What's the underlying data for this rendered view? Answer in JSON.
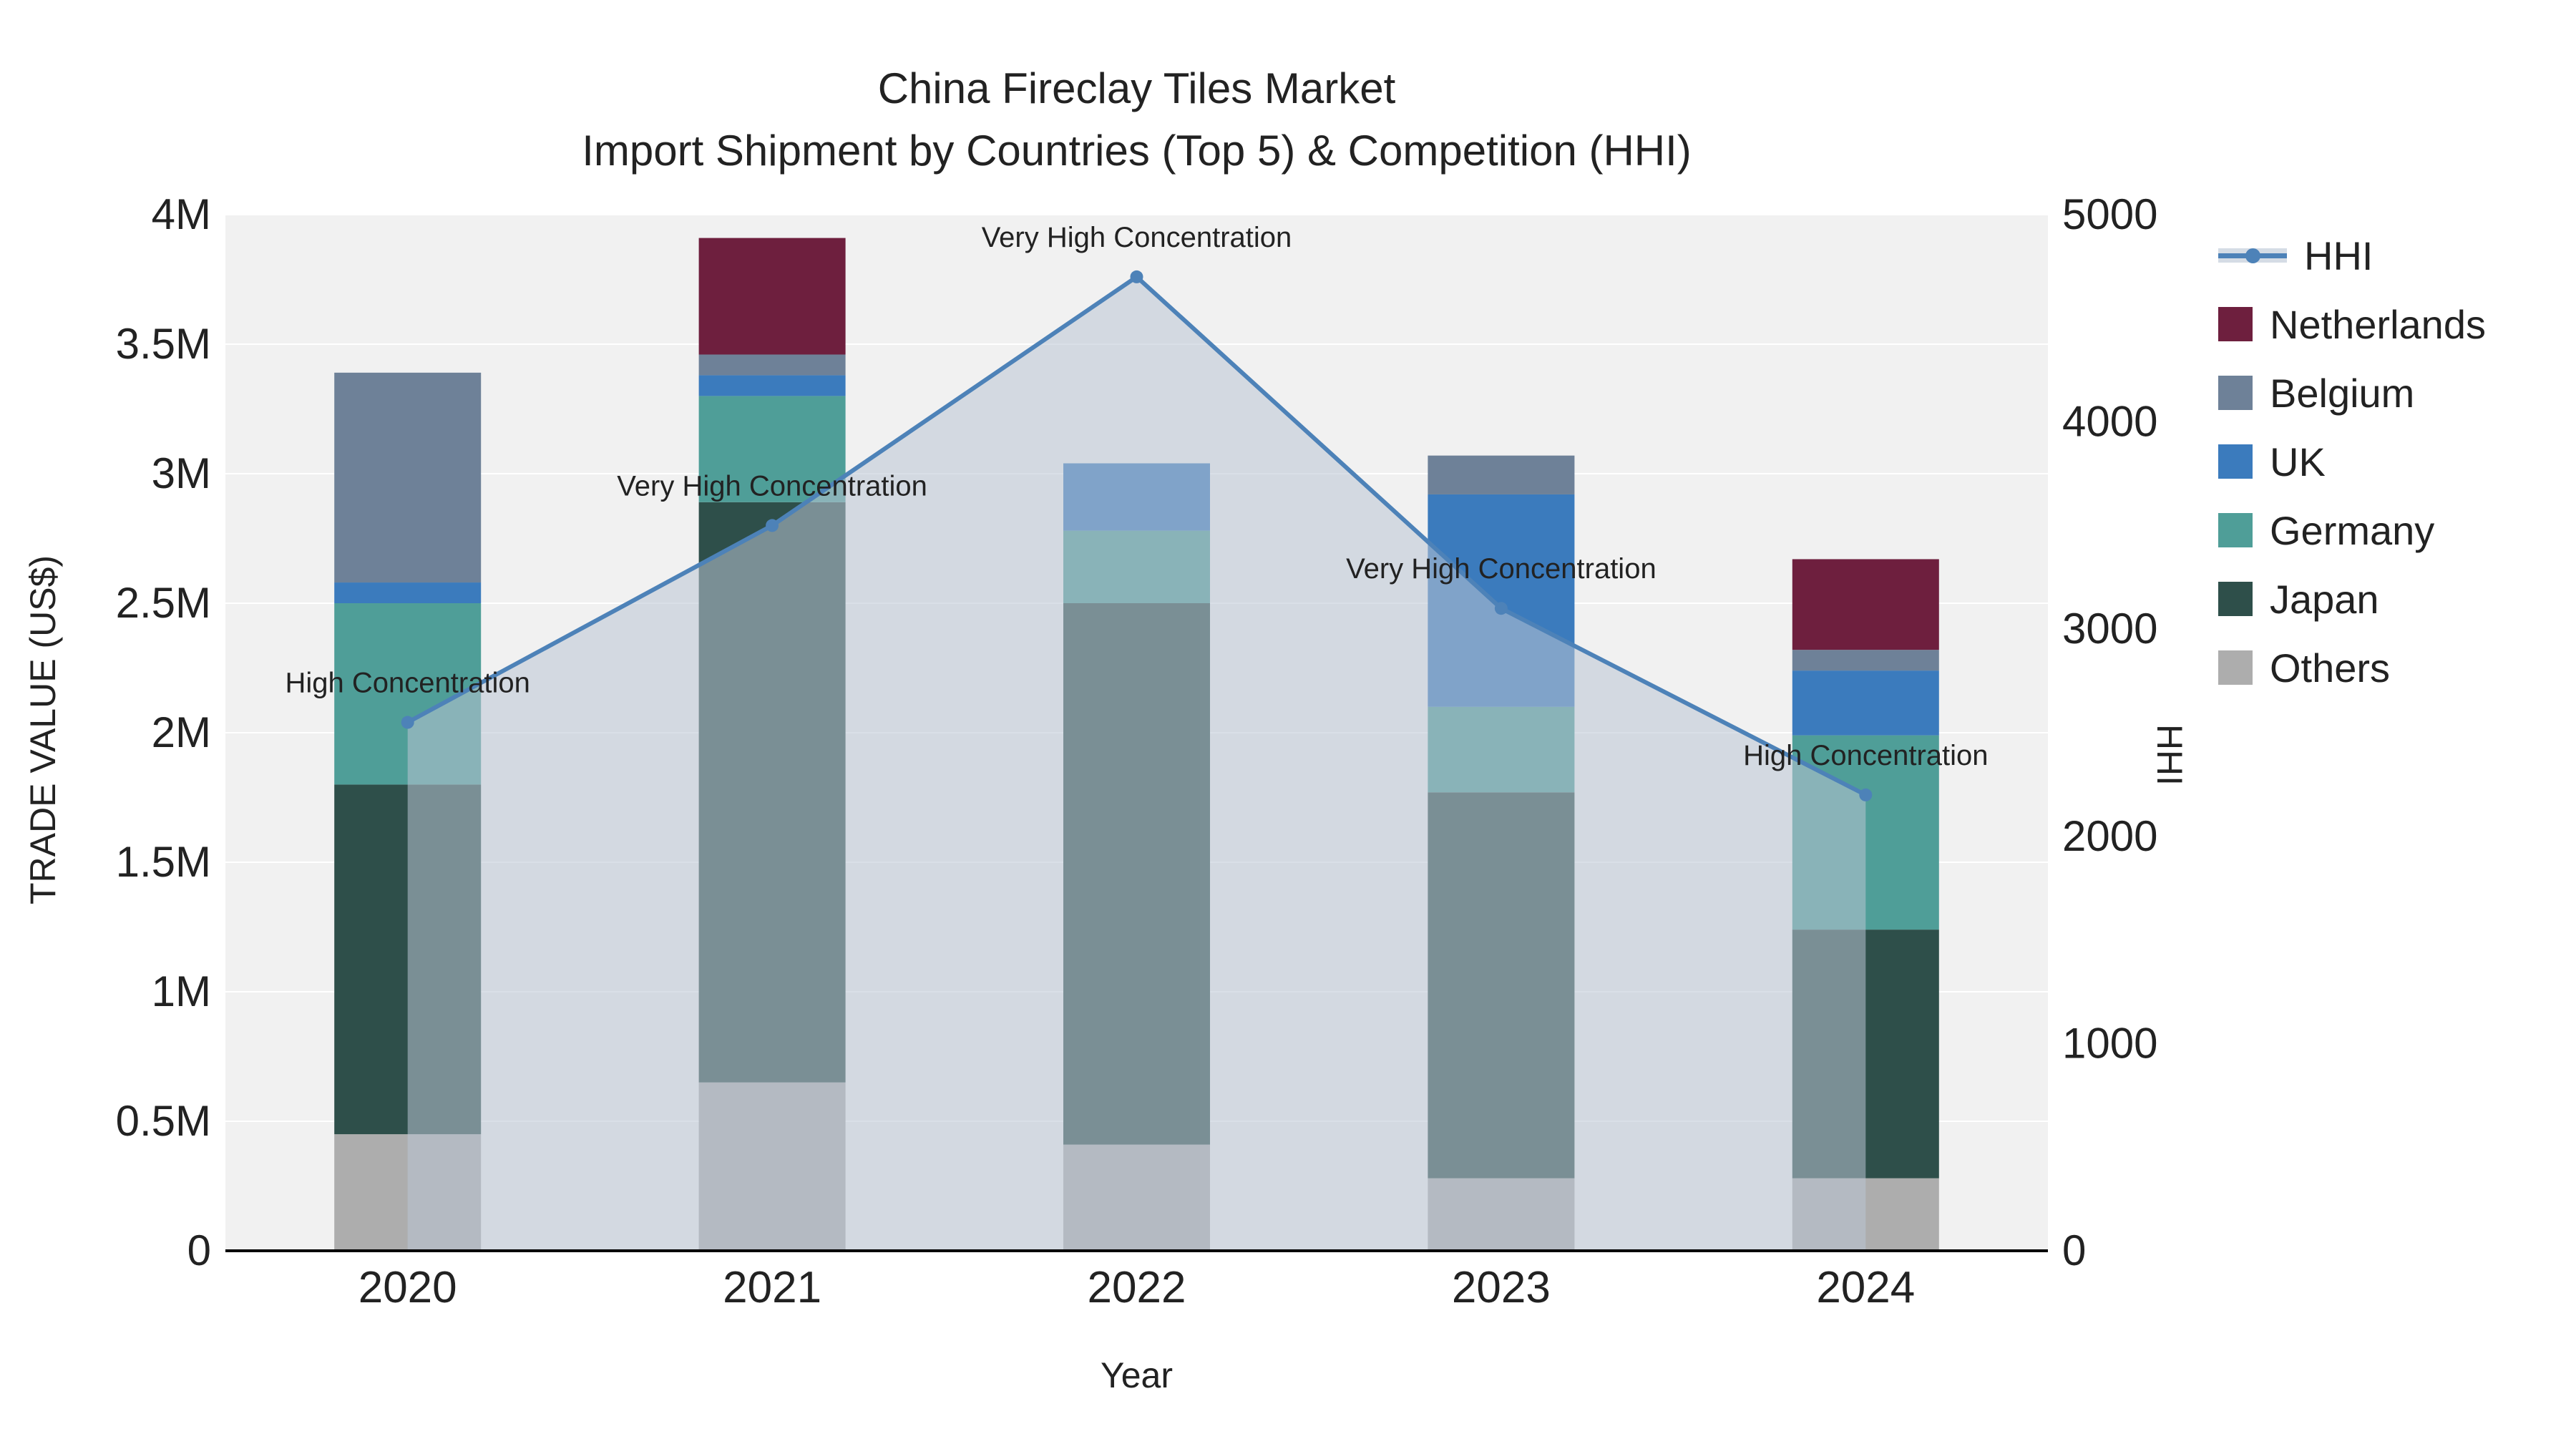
{
  "title": {
    "line1": "China Fireclay Tiles Market",
    "line2": "Import Shipment by Countries (Top 5) & Competition (HHI)"
  },
  "axes": {
    "left_label": "TRADE VALUE (US$)",
    "right_label": "HHI",
    "x_label": "Year"
  },
  "legend": {
    "items": [
      {
        "label": "HHI",
        "type": "line",
        "color": "#4d82b8"
      },
      {
        "label": "Netherlands",
        "type": "swatch",
        "color": "#6e1f3e"
      },
      {
        "label": "Belgium",
        "type": "swatch",
        "color": "#6e8198"
      },
      {
        "label": "UK",
        "type": "swatch",
        "color": "#3b7bbd"
      },
      {
        "label": "Germany",
        "type": "swatch",
        "color": "#4f9e98"
      },
      {
        "label": "Japan",
        "type": "swatch",
        "color": "#2e4f4a"
      },
      {
        "label": "Others",
        "type": "swatch",
        "color": "#adadad"
      }
    ]
  },
  "chart_data": {
    "type": "stacked-bar+line",
    "title": "China Fireclay Tiles Market — Import Shipment by Countries (Top 5) & Competition (HHI)",
    "xlabel": "Year",
    "ylabel_left": "TRADE VALUE (US$)",
    "ylabel_right": "HHI",
    "categories": [
      "2020",
      "2021",
      "2022",
      "2023",
      "2024"
    ],
    "bar_value_unit": "million US$",
    "series": [
      {
        "name": "Others",
        "color": "#adadad",
        "values": [
          0.45,
          0.65,
          0.41,
          0.28,
          0.28
        ]
      },
      {
        "name": "Japan",
        "color": "#2e4f4a",
        "values": [
          1.35,
          2.24,
          2.09,
          1.49,
          0.96
        ]
      },
      {
        "name": "Germany",
        "color": "#4f9e98",
        "values": [
          0.7,
          0.41,
          0.28,
          0.33,
          0.75
        ]
      },
      {
        "name": "UK",
        "color": "#3b7bbd",
        "values": [
          0.08,
          0.08,
          0.26,
          0.82,
          0.25
        ]
      },
      {
        "name": "Belgium",
        "color": "#6e8198",
        "values": [
          0.81,
          0.08,
          0.0,
          0.15,
          0.08
        ]
      },
      {
        "name": "Netherlands",
        "color": "#6e1f3e",
        "values": [
          0.0,
          0.45,
          0.0,
          0.0,
          0.35
        ]
      }
    ],
    "line_series": {
      "name": "HHI",
      "color": "#4d82b8",
      "area_color": "#b9c4d4",
      "area_opacity": 0.55,
      "values": [
        2550,
        3500,
        4700,
        3100,
        2200
      ],
      "annotations": [
        "High Concentration",
        "Very High Concentration",
        "Very High Concentration",
        "Very High Concentration",
        "High Concentration"
      ]
    },
    "left_axis": {
      "min": 0,
      "max": 4,
      "ticks": [
        {
          "v": 0,
          "label": "0"
        },
        {
          "v": 0.5,
          "label": "0.5M"
        },
        {
          "v": 1,
          "label": "1M"
        },
        {
          "v": 1.5,
          "label": "1.5M"
        },
        {
          "v": 2,
          "label": "2M"
        },
        {
          "v": 2.5,
          "label": "2.5M"
        },
        {
          "v": 3,
          "label": "3M"
        },
        {
          "v": 3.5,
          "label": "3.5M"
        },
        {
          "v": 4,
          "label": "4M"
        }
      ]
    },
    "right_axis": {
      "min": 0,
      "max": 5000,
      "ticks": [
        0,
        1000,
        2000,
        3000,
        4000,
        5000
      ]
    },
    "plot_bg": "#f1f1f1",
    "grid_color": "#ffffff",
    "grid_on": true,
    "legend_position": "right"
  }
}
